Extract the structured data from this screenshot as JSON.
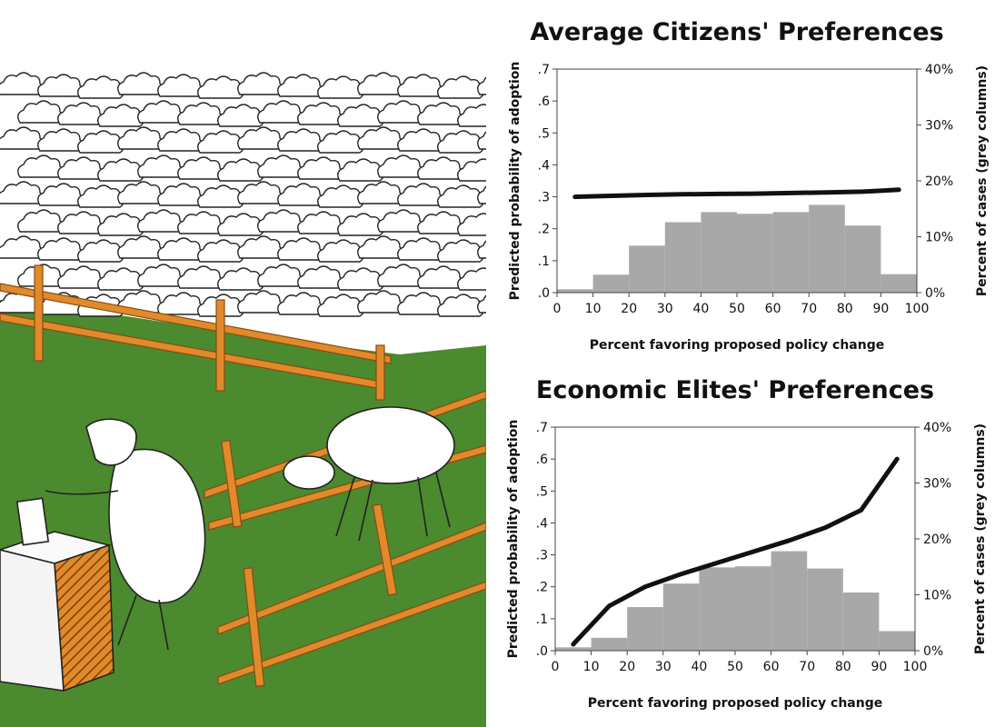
{
  "colors": {
    "grass": "#4b8a2e",
    "fence": "#e08a2b",
    "bar": "#a8a8a8",
    "line": "#111111"
  },
  "chart_data": [
    {
      "type": "bar+line",
      "title": "Average Citizens' Preferences",
      "xlabel": "Percent favoring proposed policy change",
      "ylabel_left": "Predicted probability of adoption",
      "ylabel_right": "Percent of cases (grey columns)",
      "xlim": [
        0,
        100
      ],
      "ylim_left": [
        0,
        0.7
      ],
      "ylim_right": [
        0,
        40
      ],
      "x_ticks": [
        "0",
        "10",
        "20",
        "30",
        "40",
        "50",
        "60",
        "70",
        "80",
        "90",
        "100"
      ],
      "y_left_ticks": [
        ".0",
        ".1",
        ".2",
        ".3",
        ".4",
        ".5",
        ".6",
        ".7"
      ],
      "y_right_ticks": [
        "0%",
        "10%",
        "20%",
        "30%",
        "40%"
      ],
      "bars": {
        "bin_edges": [
          0,
          10,
          20,
          30,
          40,
          50,
          60,
          70,
          80,
          90,
          100
        ],
        "values_percent": [
          0.6,
          3.2,
          8.4,
          12.6,
          14.4,
          14.1,
          14.4,
          15.7,
          12.0,
          3.3
        ]
      },
      "line": {
        "x": [
          5,
          15,
          25,
          35,
          45,
          55,
          65,
          75,
          85,
          90,
          95
        ],
        "y": [
          0.3,
          0.303,
          0.306,
          0.308,
          0.309,
          0.31,
          0.312,
          0.314,
          0.316,
          0.319,
          0.322
        ]
      }
    },
    {
      "type": "bar+line",
      "title": "Economic Elites' Preferences",
      "xlabel": "Percent favoring proposed policy change",
      "ylabel_left": "Predicted probability of adoption",
      "ylabel_right": "Percent of cases (grey columns)",
      "xlim": [
        0,
        100
      ],
      "ylim_left": [
        0,
        0.7
      ],
      "ylim_right": [
        0,
        40
      ],
      "x_ticks": [
        "0",
        "10",
        "20",
        "30",
        "40",
        "50",
        "60",
        "70",
        "80",
        "90",
        "100"
      ],
      "y_left_ticks": [
        ".0",
        ".1",
        ".2",
        ".3",
        ".4",
        ".5",
        ".6",
        ".7"
      ],
      "y_right_ticks": [
        "0%",
        "10%",
        "20%",
        "30%",
        "40%"
      ],
      "bars": {
        "bin_edges": [
          0,
          10,
          20,
          30,
          40,
          50,
          60,
          70,
          80,
          90,
          100
        ],
        "values_percent": [
          0.6,
          2.3,
          7.8,
          12.0,
          14.9,
          15.1,
          17.8,
          14.7,
          10.4,
          3.5
        ]
      },
      "line": {
        "x": [
          5,
          15,
          25,
          35,
          45,
          55,
          65,
          75,
          85,
          95
        ],
        "y": [
          0.02,
          0.14,
          0.2,
          0.24,
          0.275,
          0.31,
          0.345,
          0.385,
          0.44,
          0.6
        ]
      }
    }
  ]
}
